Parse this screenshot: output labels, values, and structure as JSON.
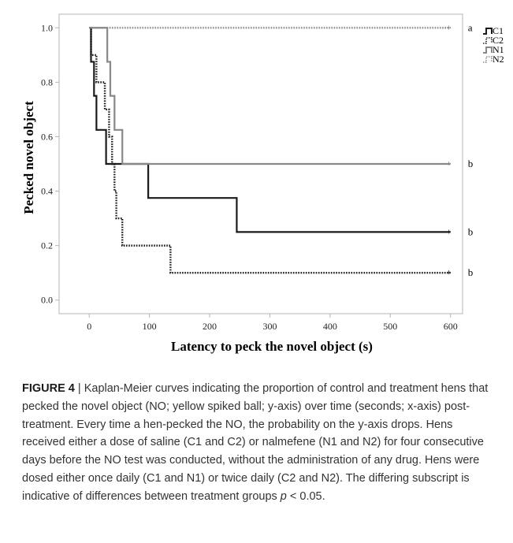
{
  "chart_data": {
    "type": "line",
    "step": true,
    "xlabel": "Latency to peck the novel object (s)",
    "ylabel": "Pecked novel object",
    "xlim": [
      -50,
      620
    ],
    "ylim": [
      -0.05,
      1.05
    ],
    "xticks": [
      0,
      100,
      200,
      300,
      400,
      500,
      600
    ],
    "yticks": [
      0.0,
      0.2,
      0.4,
      0.6,
      0.8,
      1.0
    ],
    "ytick_labels": [
      "0.0",
      "0.2",
      "0.4",
      "0.6",
      "0.8",
      "1.0"
    ],
    "grid": false,
    "legend_position": "top-right",
    "series": [
      {
        "name": "C1",
        "color": "#1a1a1a",
        "dash": "solid",
        "points": [
          [
            0,
            1.0
          ],
          [
            3,
            0.875
          ],
          [
            8,
            0.75
          ],
          [
            12,
            0.625
          ],
          [
            28,
            0.5
          ],
          [
            98,
            0.375
          ],
          [
            245,
            0.25
          ],
          [
            600,
            0.25
          ]
        ],
        "significance": "b"
      },
      {
        "name": "C2",
        "color": "#1a1a1a",
        "dash": "dotted",
        "points": [
          [
            0,
            1.0
          ],
          [
            3,
            0.9
          ],
          [
            12,
            0.8
          ],
          [
            26,
            0.7
          ],
          [
            33,
            0.6
          ],
          [
            38,
            0.5
          ],
          [
            42,
            0.4
          ],
          [
            45,
            0.3
          ],
          [
            55,
            0.2
          ],
          [
            135,
            0.1
          ],
          [
            600,
            0.1
          ]
        ],
        "significance": "b"
      },
      {
        "name": "N1",
        "color": "#888888",
        "dash": "solid",
        "points": [
          [
            0,
            1.0
          ],
          [
            30,
            0.875
          ],
          [
            35,
            0.75
          ],
          [
            42,
            0.625
          ],
          [
            55,
            0.5
          ],
          [
            600,
            0.5
          ]
        ],
        "significance": "b"
      },
      {
        "name": "N2",
        "color": "#888888",
        "dash": "dotted",
        "points": [
          [
            0,
            1.0
          ],
          [
            600,
            1.0
          ]
        ],
        "significance": "a"
      }
    ]
  },
  "caption": {
    "label": "FIGURE 4",
    "separator": " | ",
    "text_before_p": "Kaplan-Meier curves indicating the proportion of control and treatment hens that pecked the novel object (NO; yellow spiked ball; y-axis) over time (seconds; x-axis) post-treatment. Every time a hen-pecked the NO, the probability on the y-axis drops. Hens received either a dose of saline (C1 and C2) or nalmefene (N1 and N2) for four consecutive days before the NO test was conducted, without the administration of any drug. Hens were dosed either once daily (C1 and N1) or twice daily (C2 and N2). The differing subscript is indicative of differences between treatment groups ",
    "p_symbol": "p",
    "text_after_p": " < 0.05."
  }
}
